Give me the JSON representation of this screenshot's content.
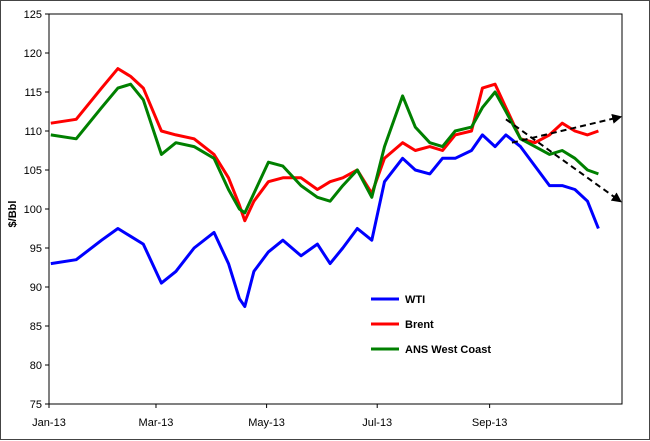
{
  "chart_data": {
    "type": "line",
    "title": "",
    "xlabel": "",
    "ylabel": "$/Bbl",
    "ylim": [
      75,
      125
    ],
    "yticks": [
      "75",
      "80",
      "85",
      "90",
      "95",
      "100",
      "105",
      "110",
      "115",
      "120",
      "125"
    ],
    "xticks": [
      "Jan-13",
      "Mar-13",
      "May-13",
      "Jul-13",
      "Sep-13"
    ],
    "x": [
      "2013-01-02",
      "2013-01-16",
      "2013-01-30",
      "2013-02-08",
      "2013-02-15",
      "2013-02-22",
      "2013-03-04",
      "2013-03-12",
      "2013-03-22",
      "2013-04-02",
      "2013-04-10",
      "2013-04-16",
      "2013-04-19",
      "2013-04-24",
      "2013-05-02",
      "2013-05-10",
      "2013-05-20",
      "2013-05-29",
      "2013-06-05",
      "2013-06-12",
      "2013-06-20",
      "2013-06-28",
      "2013-07-05",
      "2013-07-15",
      "2013-07-22",
      "2013-07-30",
      "2013-08-06",
      "2013-08-13",
      "2013-08-22",
      "2013-08-28",
      "2013-09-04",
      "2013-09-10",
      "2013-09-18",
      "2013-09-26",
      "2013-10-04",
      "2013-10-11",
      "2013-10-18",
      "2013-10-25",
      "2013-10-31"
    ],
    "series": [
      {
        "name": "WTI",
        "color": "#0000ff",
        "values": [
          93,
          93.5,
          96,
          97.5,
          96.5,
          95.5,
          90.5,
          92,
          95,
          97,
          93,
          88.5,
          87.5,
          92,
          94.5,
          96,
          94,
          95.5,
          93,
          95,
          97.5,
          96,
          103.5,
          106.5,
          105,
          104.5,
          106.5,
          106.5,
          107.5,
          109.5,
          108,
          109.5,
          108,
          105.5,
          103,
          103,
          102.5,
          101,
          97.5
        ]
      },
      {
        "name": "Brent",
        "color": "#ff0000",
        "values": [
          111,
          111.5,
          115.5,
          118,
          117,
          115.5,
          110,
          109.5,
          109,
          107,
          104,
          100.5,
          98.5,
          101,
          103.5,
          104,
          104,
          102.5,
          103.5,
          104,
          105,
          102,
          106.5,
          108.5,
          107.5,
          108,
          107.5,
          109.5,
          110,
          115.5,
          116,
          113,
          109,
          108.5,
          109.5,
          111,
          110,
          109.5,
          110
        ]
      },
      {
        "name": "ANS West Coast",
        "color": "#008000",
        "values": [
          109.5,
          109,
          113,
          115.5,
          116,
          114,
          107,
          108.5,
          108,
          106.5,
          102.5,
          100,
          99.5,
          102,
          106,
          105.5,
          103,
          101.5,
          101,
          103,
          105,
          101.5,
          108,
          114.5,
          110.5,
          108.5,
          108,
          110,
          110.5,
          113,
          115,
          112.5,
          109,
          108,
          107,
          107.5,
          106.5,
          105,
          104.5
        ]
      }
    ],
    "trend_arrows": "two dashed black arrows diverging from Sep-13",
    "grid": false,
    "legend_position": "lower-center"
  }
}
